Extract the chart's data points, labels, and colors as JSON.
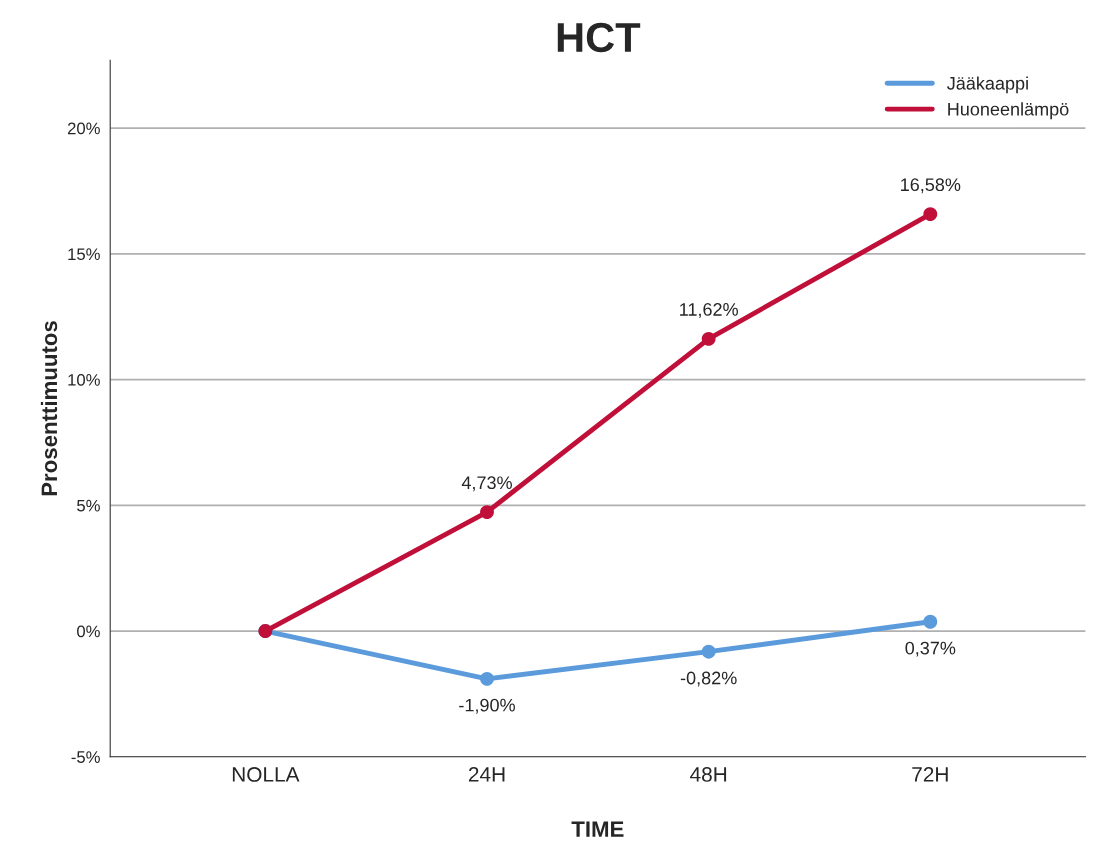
{
  "chart_data": {
    "type": "line",
    "title": "HCT",
    "xlabel": "TIME",
    "ylabel": "Prosenttimuutos",
    "categories": [
      "NOLLA",
      "24H",
      "48H",
      "72H"
    ],
    "series": [
      {
        "name": "Jääkaappi",
        "color": "#5b9bdc",
        "values": [
          0,
          -1.9,
          -0.82,
          0.37
        ],
        "value_labels": [
          null,
          "-1,90%",
          "-0,82%",
          "0,37%"
        ]
      },
      {
        "name": "Huoneenlämpö",
        "color": "#c0103a",
        "values": [
          0,
          4.73,
          11.62,
          16.58
        ],
        "value_labels": [
          null,
          "4,73%",
          "11,62%",
          "16,58%"
        ]
      }
    ],
    "ylim": [
      -5,
      22.7
    ],
    "yticks": [
      {
        "value": -5,
        "label": "-5%"
      },
      {
        "value": 0,
        "label": "0%"
      },
      {
        "value": 5,
        "label": "5%"
      },
      {
        "value": 10,
        "label": "10%"
      },
      {
        "value": 15,
        "label": "15%"
      },
      {
        "value": 20,
        "label": "20%"
      }
    ],
    "grid": "y",
    "legend": "top right",
    "marker": "circle",
    "line_style": "solid"
  }
}
